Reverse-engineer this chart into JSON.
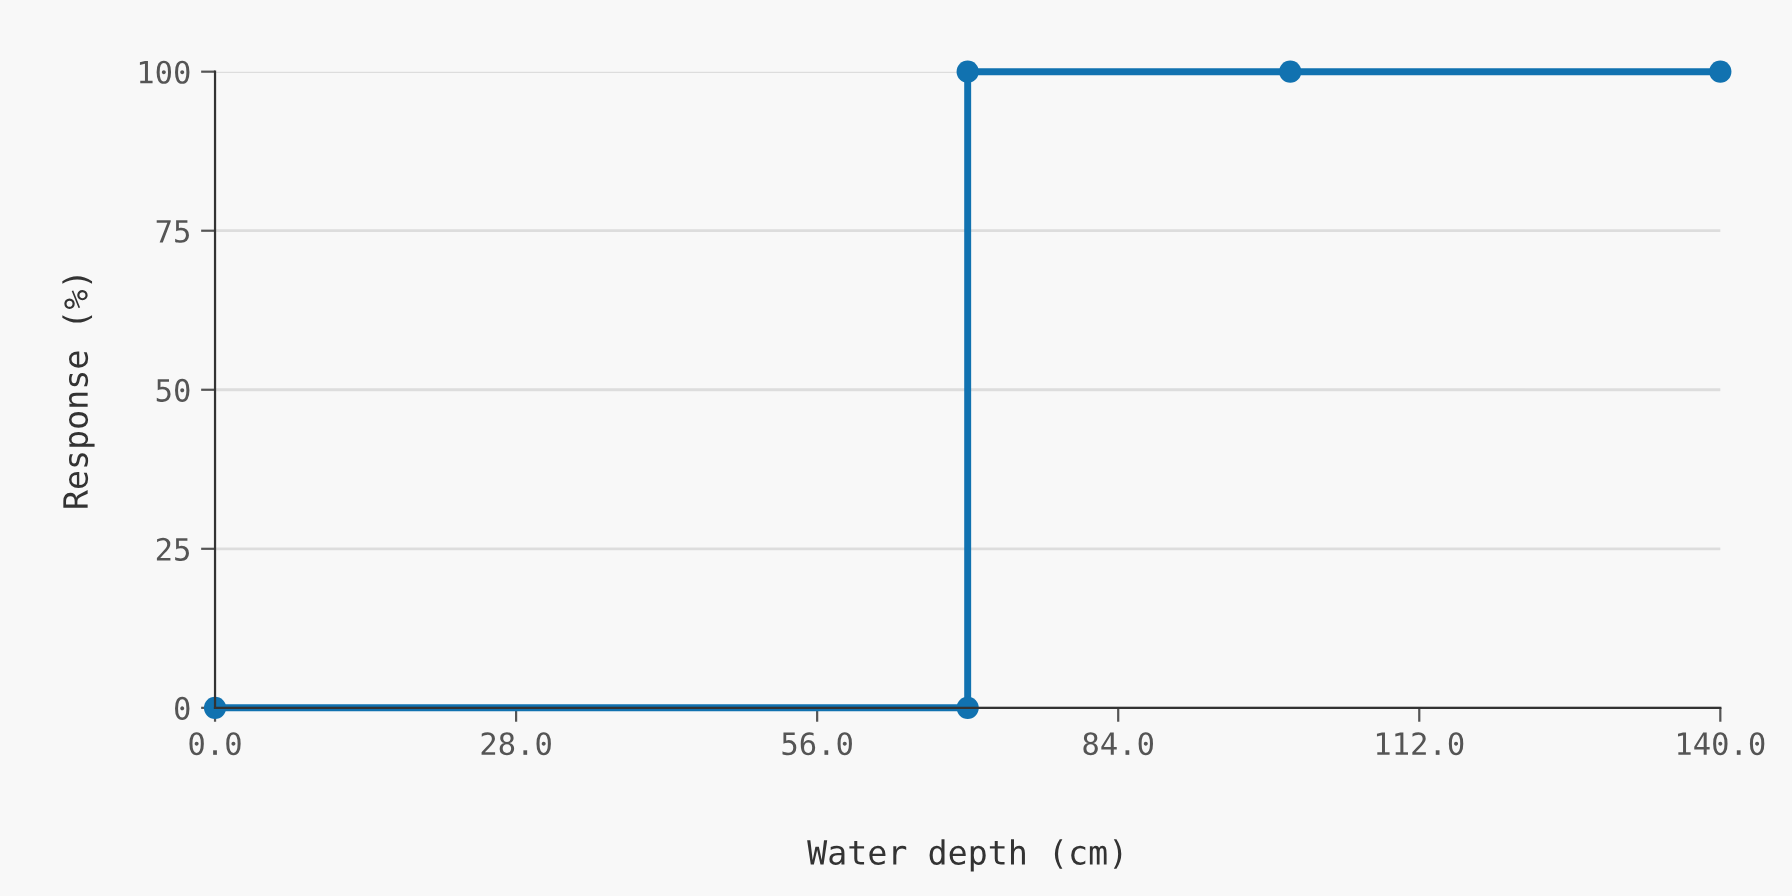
{
  "chart_data": {
    "type": "line",
    "xlabel": "Water depth (cm)",
    "ylabel": "Response (%)",
    "series": [
      {
        "color": "#1172b0",
        "x": [
          0,
          70,
          70,
          100,
          140
        ],
        "values": [
          0,
          0,
          100,
          100,
          100
        ]
      }
    ],
    "xlim": [
      0,
      140
    ],
    "xticks": [
      {
        "value": 0,
        "label": "0.0"
      },
      {
        "value": 28,
        "label": "28.0"
      },
      {
        "value": 56,
        "label": "56.0"
      },
      {
        "value": 84,
        "label": "84.0"
      },
      {
        "value": 112,
        "label": "112.0"
      },
      {
        "value": 140,
        "label": "140.0"
      }
    ],
    "ylim": [
      0,
      100
    ],
    "yticks": [
      0,
      25,
      50,
      75,
      100
    ],
    "grid": "y",
    "marker": "circle",
    "line_style": "solid"
  }
}
